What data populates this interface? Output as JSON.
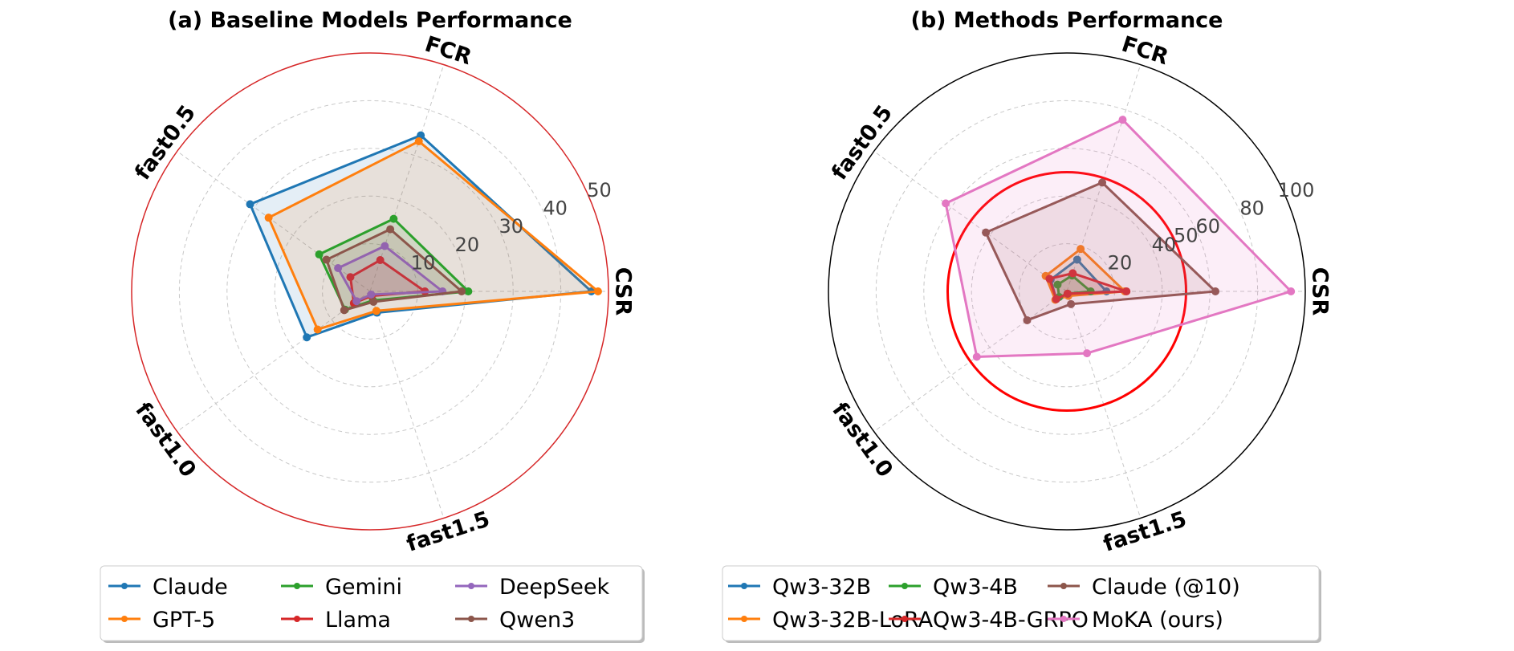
{
  "chart_data": [
    {
      "type": "radar",
      "title": "(a) Baseline Models Performance",
      "axes": [
        "CSR",
        "FCR",
        "fast0.5",
        "fast1.0",
        "fast1.5"
      ],
      "rlim": [
        0,
        50
      ],
      "rticks": [
        10,
        20,
        30,
        40,
        50
      ],
      "grid": true,
      "outer_ring_color": "#d62728",
      "legend_placement": "bottom",
      "series": [
        {
          "name": "Claude",
          "color": "#1f77b4",
          "values": [
            46.4,
            34.4,
            31.1,
            16.4,
            4.7
          ]
        },
        {
          "name": "GPT-5",
          "color": "#ff7f0e",
          "values": [
            47.8,
            33.1,
            26.3,
            13.6,
            4.3
          ]
        },
        {
          "name": "Gemini",
          "color": "#2ca02c",
          "values": [
            20.6,
            16.0,
            13.2,
            6.5,
            2.0
          ]
        },
        {
          "name": "Llama",
          "color": "#d62728",
          "values": [
            11.5,
            6.9,
            5.1,
            4.2,
            1.0
          ]
        },
        {
          "name": "DeepSeek",
          "color": "#9467bd",
          "values": [
            15.2,
            10.0,
            8.3,
            3.5,
            0.7
          ]
        },
        {
          "name": "Qwen3",
          "color": "#8c564b",
          "values": [
            19.2,
            13.7,
            11.3,
            6.7,
            2.3
          ]
        }
      ]
    },
    {
      "type": "radar",
      "title": "(b) Methods Performance",
      "axes": [
        "CSR",
        "FCR",
        "fast0.5",
        "fast1.0",
        "fast1.5"
      ],
      "rlim": [
        0,
        100
      ],
      "rticks": [
        20,
        40,
        50,
        60,
        80,
        100
      ],
      "grid": true,
      "reference_circle": {
        "value": 50,
        "color": "#ff0000"
      },
      "legend_placement": "bottom",
      "series": [
        {
          "name": "Qw3-32B",
          "color": "#1f77b4",
          "values": [
            16.6,
            14.0,
            8.4,
            5.5,
            1.5
          ]
        },
        {
          "name": "Qw3-32B-LoRA",
          "color": "#ff7f0e",
          "values": [
            24.3,
            18.7,
            11.0,
            6.0,
            2.0
          ]
        },
        {
          "name": "Qw3-4B",
          "color": "#2ca02c",
          "values": [
            10.0,
            7.0,
            4.8,
            4.0,
            1.0
          ]
        },
        {
          "name": "Qw3-4B-GRPO",
          "color": "#d62728",
          "values": [
            25.0,
            8.0,
            9.0,
            5.5,
            1.0
          ]
        },
        {
          "name": "Claude (@10)",
          "color": "#8c564b",
          "values": [
            62.3,
            48.0,
            42.0,
            20.6,
            5.6
          ]
        },
        {
          "name": "MoKA (ours)",
          "color": "#e377c2",
          "values": [
            94.0,
            75.7,
            62.8,
            46.7,
            27.3
          ]
        }
      ]
    }
  ]
}
